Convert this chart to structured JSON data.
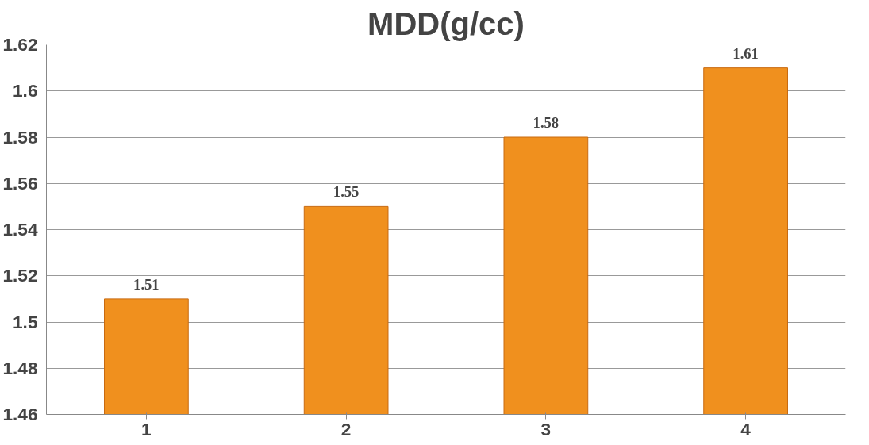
{
  "chart_data": {
    "type": "bar",
    "title": "MDD(g/cc)",
    "categories": [
      "1",
      "2",
      "3",
      "4"
    ],
    "values": [
      1.51,
      1.55,
      1.58,
      1.61
    ],
    "color": "#f0901e",
    "ylim": [
      1.46,
      1.62
    ],
    "yticks": [
      1.46,
      1.48,
      1.5,
      1.52,
      1.54,
      1.56,
      1.58,
      1.6,
      1.62
    ],
    "grid": "y",
    "data_labels": true
  }
}
